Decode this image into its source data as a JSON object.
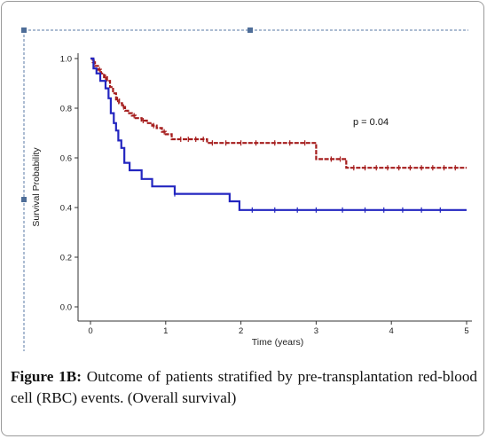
{
  "caption": {
    "label": "Figure 1B:",
    "text": " Outcome of patients stratified by pre-transplantation red-blood cell (RBC) events. (Overall survival)"
  },
  "chart_data": {
    "type": "line",
    "title": "",
    "xlabel": "Time (years)",
    "ylabel": "Survival Probability",
    "xlim": [
      0,
      5
    ],
    "ylim": [
      0,
      1
    ],
    "xticks": [
      "0",
      "1",
      "2",
      "3",
      "4",
      "5"
    ],
    "yticks": [
      "0.0",
      "0.2",
      "0.4",
      "0.6",
      "0.8",
      "1.0"
    ],
    "annotation": "p = 0.04",
    "step": true,
    "series": [
      {
        "color": "#a51d1d",
        "dashed": true,
        "x": [
          0,
          0.03,
          0.06,
          0.1,
          0.14,
          0.18,
          0.22,
          0.26,
          0.3,
          0.34,
          0.38,
          0.42,
          0.46,
          0.5,
          0.55,
          0.6,
          0.68,
          0.75,
          0.82,
          0.88,
          0.95,
          1.0,
          1.08,
          1.55,
          3.0,
          3.4,
          5.0
        ],
        "y": [
          1.0,
          0.985,
          0.97,
          0.955,
          0.94,
          0.925,
          0.91,
          0.885,
          0.86,
          0.835,
          0.82,
          0.805,
          0.79,
          0.78,
          0.77,
          0.76,
          0.75,
          0.74,
          0.73,
          0.72,
          0.705,
          0.695,
          0.675,
          0.66,
          0.595,
          0.56,
          0.56
        ],
        "censored_x": [
          0.05,
          0.12,
          0.2,
          0.36,
          0.44,
          0.58,
          0.7,
          0.84,
          0.98,
          1.2,
          1.3,
          1.4,
          1.5,
          1.62,
          1.8,
          2.0,
          2.2,
          2.45,
          2.65,
          2.85,
          3.2,
          3.32,
          3.5,
          3.65,
          3.8,
          3.95,
          4.1,
          4.25,
          4.4,
          4.55,
          4.7,
          4.85
        ]
      },
      {
        "color": "#2326c0",
        "dashed": false,
        "x": [
          0,
          0.04,
          0.08,
          0.13,
          0.2,
          0.24,
          0.27,
          0.31,
          0.34,
          0.37,
          0.41,
          0.45,
          0.52,
          0.68,
          0.82,
          1.12,
          1.85,
          1.98,
          5.0
        ],
        "y": [
          1.0,
          0.96,
          0.94,
          0.91,
          0.88,
          0.84,
          0.78,
          0.74,
          0.71,
          0.67,
          0.64,
          0.58,
          0.55,
          0.515,
          0.485,
          0.455,
          0.425,
          0.39,
          0.39
        ],
        "censored_x": [
          1.12,
          2.15,
          2.45,
          2.75,
          3.0,
          3.35,
          3.65,
          3.9,
          4.15,
          4.4,
          4.65
        ]
      }
    ]
  }
}
